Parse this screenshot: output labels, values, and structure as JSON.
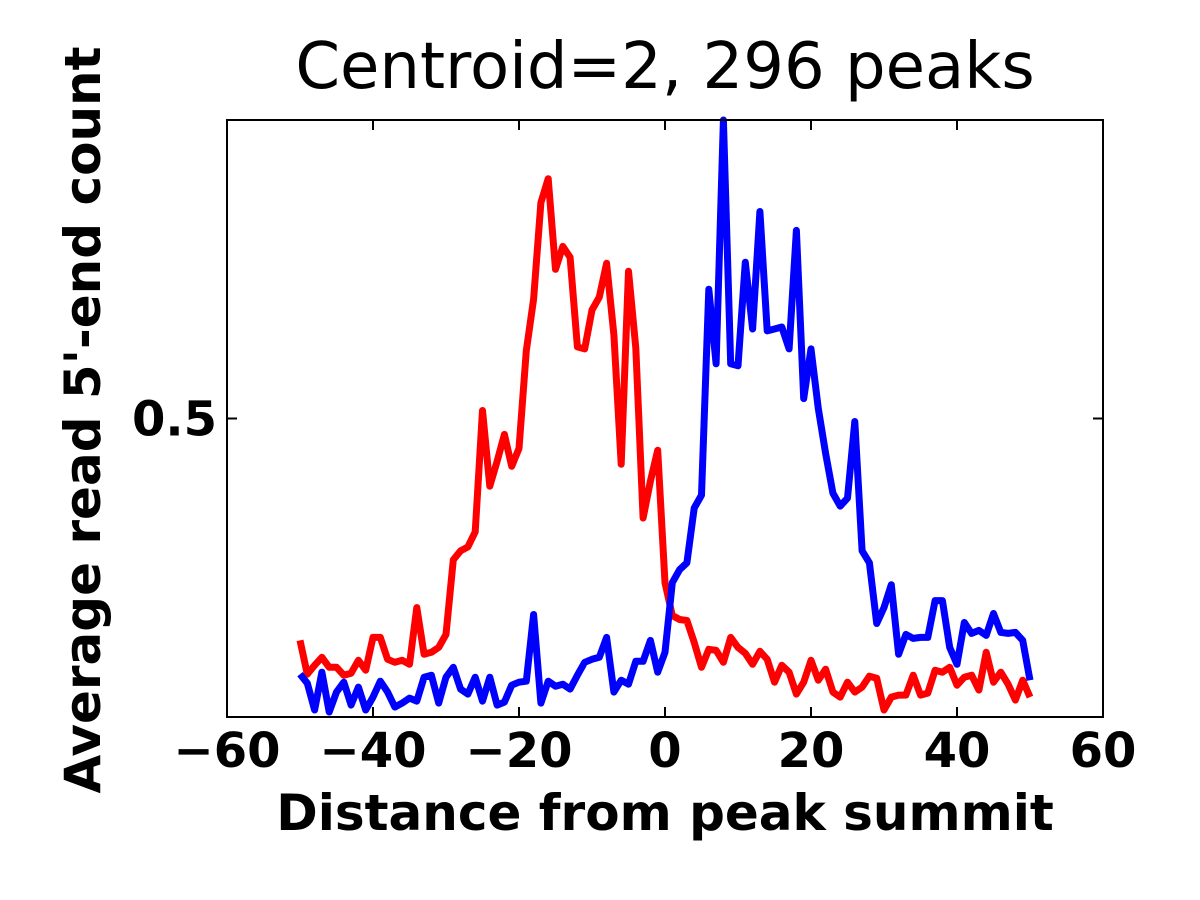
{
  "chart_data": {
    "type": "line",
    "title": "Centroid=2, 296 peaks",
    "xlabel": "Distance from peak summit",
    "ylabel": "Average read 5'-end count",
    "x": [
      -50,
      -49,
      -48,
      -47,
      -46,
      -45,
      -44,
      -43,
      -42,
      -41,
      -40,
      -39,
      -38,
      -37,
      -36,
      -35,
      -34,
      -33,
      -32,
      -31,
      -30,
      -29,
      -28,
      -27,
      -26,
      -25,
      -24,
      -23,
      -22,
      -21,
      -20,
      -19,
      -18,
      -17,
      -16,
      -15,
      -14,
      -13,
      -12,
      -11,
      -10,
      -9,
      -8,
      -7,
      -6,
      -5,
      -4,
      -3,
      -2,
      -1,
      0,
      1,
      2,
      3,
      4,
      5,
      6,
      7,
      8,
      9,
      10,
      11,
      12,
      13,
      14,
      15,
      16,
      17,
      18,
      19,
      20,
      21,
      22,
      23,
      24,
      25,
      26,
      27,
      28,
      29,
      30,
      31,
      32,
      33,
      34,
      35,
      36,
      37,
      38,
      39,
      40,
      41,
      42,
      43,
      44,
      45,
      46,
      47,
      48,
      49,
      50
    ],
    "series": [
      {
        "color": "#ff0000",
        "values": [
          0.277,
          0.243,
          0.252,
          0.26,
          0.25,
          0.25,
          0.242,
          0.244,
          0.257,
          0.247,
          0.28,
          0.28,
          0.258,
          0.255,
          0.257,
          0.253,
          0.31,
          0.263,
          0.265,
          0.27,
          0.283,
          0.358,
          0.367,
          0.371,
          0.386,
          0.508,
          0.432,
          0.457,
          0.484,
          0.452,
          0.47,
          0.568,
          0.62,
          0.717,
          0.741,
          0.65,
          0.673,
          0.662,
          0.572,
          0.57,
          0.609,
          0.622,
          0.656,
          0.584,
          0.454,
          0.648,
          0.571,
          0.4,
          0.437,
          0.468,
          0.335,
          0.302,
          0.298,
          0.297,
          0.275,
          0.25,
          0.268,
          0.267,
          0.255,
          0.28,
          0.27,
          0.264,
          0.253,
          0.266,
          0.258,
          0.235,
          0.252,
          0.245,
          0.223,
          0.235,
          0.257,
          0.237,
          0.248,
          0.225,
          0.22,
          0.235,
          0.225,
          0.23,
          0.241,
          0.239,
          0.207,
          0.22,
          0.222,
          0.222,
          0.242,
          0.222,
          0.224,
          0.247,
          0.245,
          0.25,
          0.232,
          0.24,
          0.242,
          0.227,
          0.265,
          0.235,
          0.245,
          0.233,
          0.217,
          0.237,
          0.22
        ]
      },
      {
        "color": "#0000ff",
        "values": [
          0.243,
          0.234,
          0.207,
          0.245,
          0.205,
          0.225,
          0.235,
          0.212,
          0.23,
          0.207,
          0.22,
          0.236,
          0.225,
          0.21,
          0.214,
          0.219,
          0.216,
          0.24,
          0.242,
          0.214,
          0.24,
          0.25,
          0.228,
          0.223,
          0.24,
          0.216,
          0.24,
          0.212,
          0.215,
          0.232,
          0.235,
          0.236,
          0.303,
          0.214,
          0.236,
          0.231,
          0.233,
          0.228,
          0.242,
          0.255,
          0.258,
          0.26,
          0.28,
          0.225,
          0.237,
          0.233,
          0.256,
          0.256,
          0.277,
          0.245,
          0.265,
          0.335,
          0.348,
          0.355,
          0.41,
          0.423,
          0.63,
          0.555,
          0.8,
          0.555,
          0.553,
          0.657,
          0.59,
          0.708,
          0.588,
          0.59,
          0.592,
          0.57,
          0.689,
          0.52,
          0.57,
          0.51,
          0.465,
          0.425,
          0.412,
          0.42,
          0.497,
          0.367,
          0.355,
          0.294,
          0.31,
          0.333,
          0.263,
          0.283,
          0.279,
          0.28,
          0.28,
          0.317,
          0.317,
          0.27,
          0.253,
          0.295,
          0.284,
          0.287,
          0.282,
          0.304,
          0.285,
          0.284,
          0.285,
          0.277,
          0.237
        ]
      }
    ],
    "xlim": [
      -60,
      60
    ],
    "xticks": [
      {
        "value": -60,
        "label": "−60"
      },
      {
        "value": -40,
        "label": "−40"
      },
      {
        "value": -20,
        "label": "−20"
      },
      0,
      20,
      40,
      60
    ],
    "ylim": [
      0.2,
      0.8
    ],
    "yticks": [
      0.5
    ]
  }
}
